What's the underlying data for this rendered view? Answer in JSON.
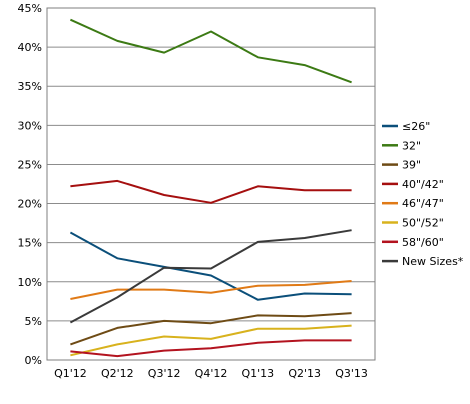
{
  "chart_data": {
    "type": "line",
    "title": "",
    "xlabel": "",
    "ylabel": "",
    "categories": [
      "Q1'12",
      "Q2'12",
      "Q3'12",
      "Q4'12",
      "Q1'13",
      "Q2'13",
      "Q3'13"
    ],
    "ylim": [
      0,
      45
    ],
    "yticks": [
      "0%",
      "5%",
      "10%",
      "15%",
      "20%",
      "25%",
      "30%",
      "35%",
      "40%",
      "45%"
    ],
    "grid": true,
    "legend_position": "right",
    "series": [
      {
        "name": "≤26\"",
        "color": "#0b4f7a",
        "values": [
          16.3,
          13.0,
          11.9,
          10.8,
          7.7,
          8.5,
          8.4
        ]
      },
      {
        "name": "32\"",
        "color": "#3c7a14",
        "values": [
          43.5,
          40.8,
          39.3,
          42.0,
          38.7,
          37.7,
          35.5
        ]
      },
      {
        "name": "39\"",
        "color": "#6e4b15",
        "values": [
          2.0,
          4.1,
          5.0,
          4.7,
          5.7,
          5.6,
          6.0
        ]
      },
      {
        "name": "40\"/42\"",
        "color": "#a50f0f",
        "values": [
          22.2,
          22.9,
          21.1,
          20.1,
          22.2,
          21.7,
          21.7
        ]
      },
      {
        "name": "46\"/47\"",
        "color": "#e07a16",
        "values": [
          7.8,
          9.0,
          9.0,
          8.6,
          9.5,
          9.6,
          10.1
        ]
      },
      {
        "name": "50\"/52\"",
        "color": "#d8b21d",
        "values": [
          0.6,
          2.0,
          3.0,
          2.7,
          4.0,
          4.0,
          4.4
        ]
      },
      {
        "name": "58\"/60\"",
        "color": "#b3131f",
        "values": [
          1.1,
          0.5,
          1.2,
          1.5,
          2.2,
          2.5,
          2.5
        ]
      },
      {
        "name": "New Sizes*",
        "color": "#3a3a3a",
        "values": [
          4.8,
          8.0,
          11.8,
          11.7,
          15.1,
          15.6,
          16.6
        ]
      }
    ]
  }
}
